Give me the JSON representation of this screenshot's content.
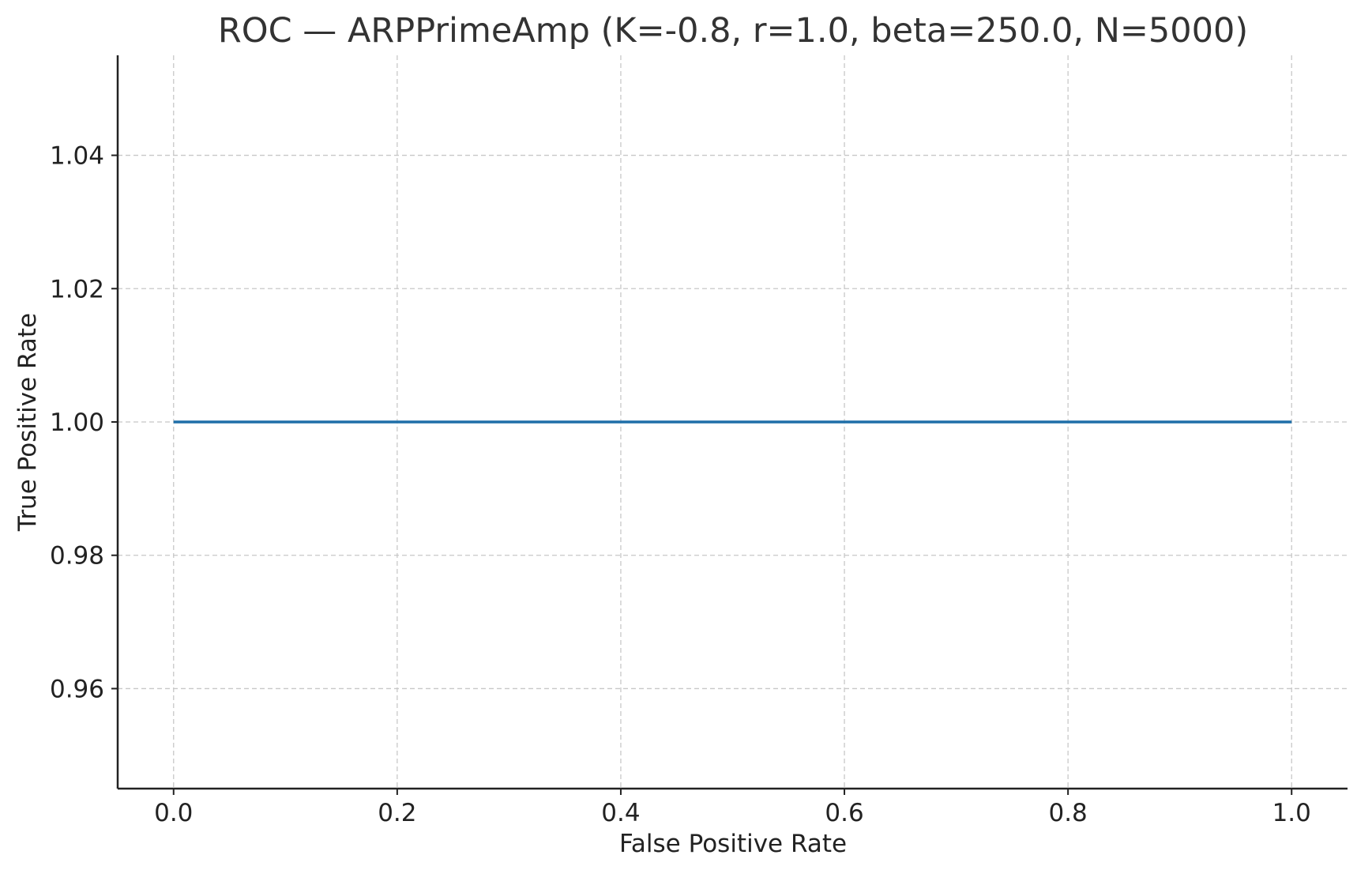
{
  "chart_data": {
    "type": "line",
    "title": "ROC — ARPPrimeAmp (K=-0.8, r=1.0, beta=250.0, N=5000)",
    "xlabel": "False Positive Rate",
    "ylabel": "True Positive Rate",
    "xlim": [
      -0.05,
      1.05
    ],
    "ylim": [
      0.945,
      1.055
    ],
    "x_ticks": [
      0.0,
      0.2,
      0.4,
      0.6,
      0.8,
      1.0
    ],
    "x_tick_labels": [
      "0.0",
      "0.2",
      "0.4",
      "0.6",
      "0.8",
      "1.0"
    ],
    "y_ticks": [
      0.96,
      0.98,
      1.0,
      1.02,
      1.04
    ],
    "y_tick_labels": [
      "0.96",
      "0.98",
      "1.00",
      "1.02",
      "1.04"
    ],
    "grid": true,
    "series": [
      {
        "color": "#1f6fa8",
        "x": [
          0.0,
          1.0
        ],
        "y": [
          1.0,
          1.0
        ]
      }
    ]
  }
}
